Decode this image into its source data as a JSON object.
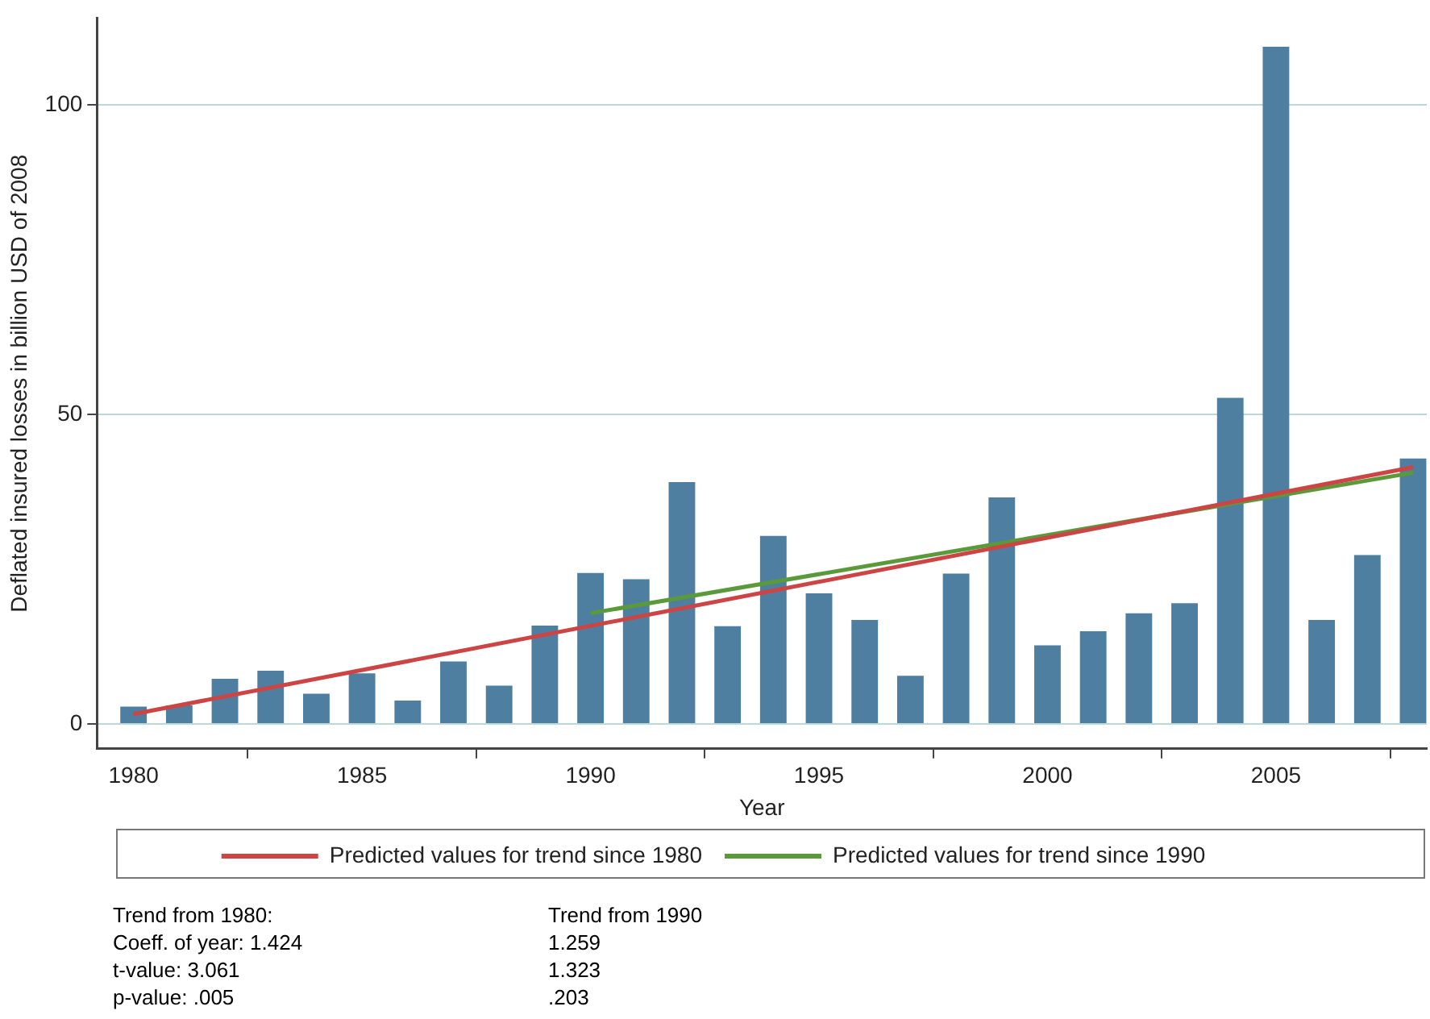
{
  "chart_data": {
    "type": "bar",
    "xlabel": "Year",
    "ylabel": "Deflated insured losses in billion USD of 2008",
    "x": [
      1980,
      1981,
      1982,
      1983,
      1984,
      1985,
      1986,
      1987,
      1988,
      1989,
      1990,
      1991,
      1992,
      1993,
      1994,
      1995,
      1996,
      1997,
      1998,
      1999,
      2000,
      2001,
      2002,
      2003,
      2004,
      2005,
      2006,
      2007,
      2008
    ],
    "series": [
      {
        "color": "#4f7fa0",
        "values": [
          2.8,
          3.0,
          7.3,
          8.6,
          4.9,
          8.2,
          3.8,
          10.1,
          6.2,
          15.9,
          24.4,
          23.4,
          39.1,
          15.8,
          30.4,
          21.1,
          16.8,
          7.8,
          24.3,
          36.6,
          12.7,
          15.0,
          17.9,
          19.5,
          52.7,
          109.4,
          16.8,
          27.3,
          42.9
        ]
      },
      {
        "type": "line",
        "name": "Predicted values for trend since 1980",
        "color": "#cc4444",
        "x": [
          1980,
          2008
        ],
        "values": [
          1.6,
          41.5
        ]
      },
      {
        "type": "line",
        "name": "Predicted values for trend since 1990",
        "color": "#5a9a3a",
        "x": [
          1990,
          2008
        ],
        "values": [
          17.9,
          40.6
        ]
      }
    ],
    "xlim": [
      1979.2,
      2008.3
    ],
    "xticks": [
      1980,
      1985,
      1990,
      1995,
      2000,
      2005
    ],
    "ylim": [
      -4,
      114
    ],
    "yticks": [
      0,
      50,
      100
    ],
    "grid": "y",
    "legend": "bottom",
    "marker": "none",
    "annotations": [
      "Trend from 1980:",
      "Coeff. of year: 1.424",
      "t-value: 3.061",
      "p-value: .005",
      "Trend from 1990",
      "1.259",
      "1.323",
      ".203"
    ]
  }
}
